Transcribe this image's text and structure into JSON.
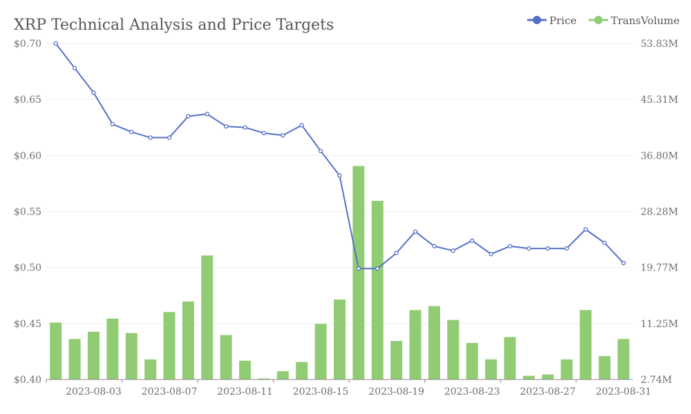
{
  "chart_data": {
    "type": "bar+line",
    "title": "XRP Technical Analysis and Price Targets",
    "categories": [
      "2023-08-01",
      "2023-08-02",
      "2023-08-03",
      "2023-08-04",
      "2023-08-05",
      "2023-08-06",
      "2023-08-07",
      "2023-08-08",
      "2023-08-09",
      "2023-08-10",
      "2023-08-11",
      "2023-08-12",
      "2023-08-13",
      "2023-08-14",
      "2023-08-15",
      "2023-08-16",
      "2023-08-17",
      "2023-08-18",
      "2023-08-19",
      "2023-08-20",
      "2023-08-21",
      "2023-08-22",
      "2023-08-23",
      "2023-08-24",
      "2023-08-25",
      "2023-08-26",
      "2023-08-27",
      "2023-08-28",
      "2023-08-29",
      "2023-08-30",
      "2023-08-31"
    ],
    "x_tick_labels": [
      "2023-08-03",
      "2023-08-07",
      "2023-08-11",
      "2023-08-15",
      "2023-08-19",
      "2023-08-23",
      "2023-08-27",
      "2023-08-31"
    ],
    "series": [
      {
        "name": "Price",
        "type": "line",
        "axis": "left",
        "color": "#5470c6",
        "values": [
          0.7,
          0.678,
          0.656,
          0.628,
          0.621,
          0.616,
          0.616,
          0.635,
          0.637,
          0.626,
          0.625,
          0.62,
          0.618,
          0.627,
          0.604,
          0.582,
          0.499,
          0.499,
          0.513,
          0.532,
          0.519,
          0.515,
          0.524,
          0.512,
          0.519,
          0.517,
          0.517,
          0.517,
          0.534,
          0.522,
          0.504
        ]
      },
      {
        "name": "TransVolume",
        "type": "bar",
        "axis": "right",
        "color": "#91cc75",
        "values": [
          11.4,
          8.9,
          10.0,
          12.0,
          9.8,
          5.8,
          13.0,
          14.6,
          21.6,
          9.5,
          5.6,
          2.9,
          4.0,
          5.4,
          11.2,
          14.9,
          35.2,
          29.9,
          8.6,
          13.3,
          13.9,
          11.8,
          8.3,
          5.8,
          9.2,
          3.3,
          3.5,
          5.8,
          13.3,
          6.3,
          8.9
        ]
      }
    ],
    "y_left": {
      "ticks": [
        "$0.40",
        "$0.45",
        "$0.50",
        "$0.55",
        "$0.60",
        "$0.65",
        "$0.70"
      ],
      "range": [
        0.4,
        0.7
      ]
    },
    "y_right": {
      "ticks": [
        "2.74M",
        "11.25M",
        "19.77M",
        "28.28M",
        "36.80M",
        "45.31M",
        "53.83M"
      ],
      "range": [
        2.74,
        53.83
      ],
      "unit": "M"
    },
    "legend": {
      "position": "top-right"
    },
    "grid": true
  }
}
